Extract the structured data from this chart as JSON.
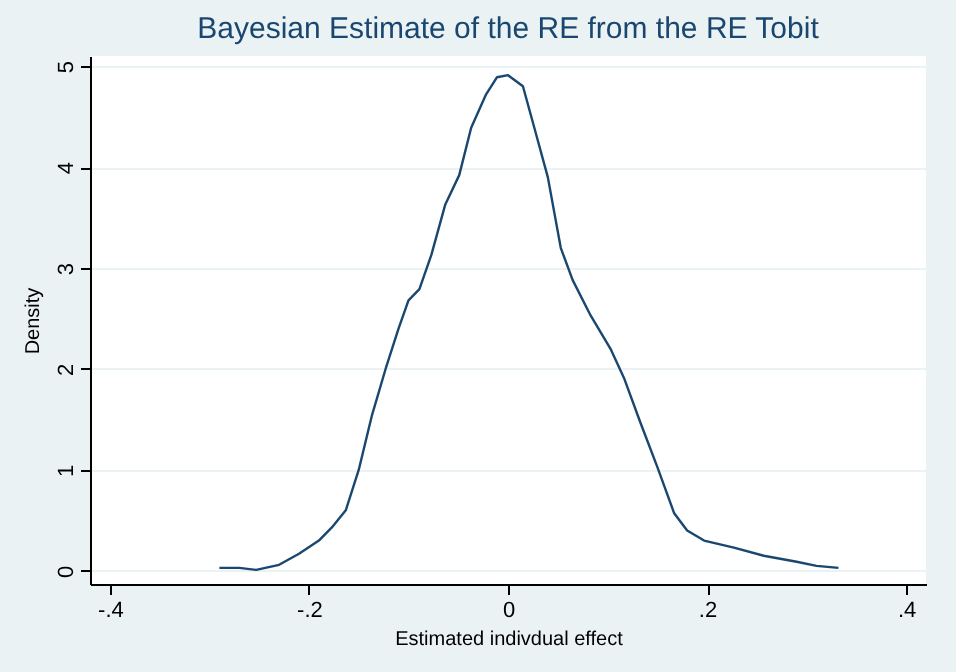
{
  "chart_data": {
    "type": "line",
    "title": "Bayesian Estimate of the RE from the RE Tobit",
    "xlabel": "Estimated indivdual effect",
    "ylabel": "Density",
    "x": [
      -0.29,
      -0.27,
      -0.253,
      -0.23,
      -0.21,
      -0.19,
      -0.177,
      -0.163,
      -0.15,
      -0.137,
      -0.123,
      -0.11,
      -0.1,
      -0.089,
      -0.077,
      -0.063,
      -0.049,
      -0.037,
      -0.022,
      -0.011,
      0,
      0.015,
      0.027,
      0.04,
      0.053,
      0.065,
      0.083,
      0.103,
      0.117,
      0.133,
      0.15,
      0.167,
      0.18,
      0.197,
      0.227,
      0.257,
      0.29,
      0.31,
      0.332
    ],
    "series": [
      {
        "color": "#1a476f",
        "values": [
          0.03,
          0.03,
          0.01,
          0.06,
          0.17,
          0.3,
          0.43,
          0.6,
          1.0,
          1.53,
          2.0,
          2.4,
          2.68,
          2.79,
          3.13,
          3.63,
          3.92,
          4.39,
          4.72,
          4.89,
          4.91,
          4.8,
          4.37,
          3.9,
          3.2,
          2.88,
          2.53,
          2.2,
          1.9,
          1.47,
          1.03,
          0.57,
          0.4,
          0.3,
          0.23,
          0.15,
          0.09,
          0.05,
          0.03
        ]
      }
    ],
    "xlim": [
      -0.42,
      0.42
    ],
    "ylim": [
      -0.13,
      5.1
    ],
    "xticks": [
      {
        "value": -0.4,
        "label": "-.4"
      },
      {
        "value": -0.2,
        "label": "-.2"
      },
      0,
      {
        "value": 0.2,
        "label": ".2"
      },
      {
        "value": 0.4,
        "label": ".4"
      }
    ],
    "yticks": [
      0,
      1,
      2,
      3,
      4,
      5
    ],
    "grid": "y",
    "line_style": "solid",
    "marker": "none"
  }
}
